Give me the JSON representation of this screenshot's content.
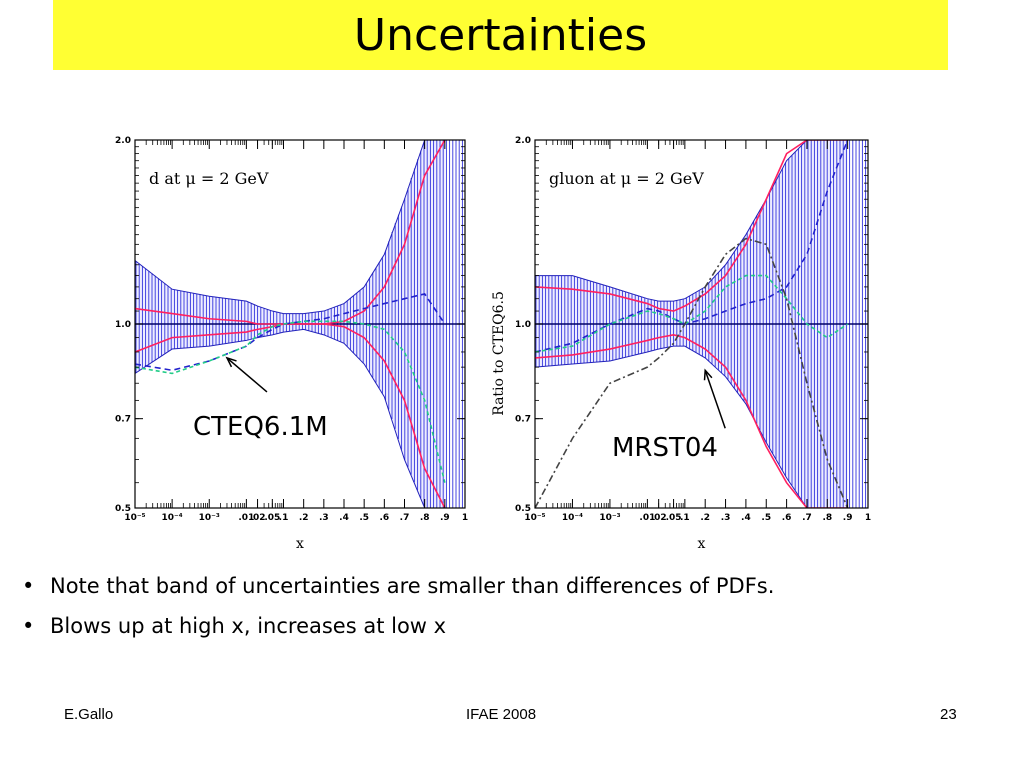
{
  "title": "Uncertainties",
  "chart_data": [
    {
      "type": "line",
      "label": "d at μ = 2 GeV",
      "xlabel": "x",
      "ylabel": "",
      "x_scale": "mixed-log",
      "ylim": [
        0.5,
        2.0
      ],
      "ytick_labels": [
        "2.0",
        "1.0",
        "0.7",
        "0.5"
      ],
      "xtick_labels": [
        "10⁻⁵",
        "10⁻⁴",
        "10⁻³",
        ".01",
        ".02",
        ".05",
        ".1",
        ".2",
        ".3",
        ".4",
        ".5",
        ".6",
        ".7",
        ".8",
        ".9",
        "1"
      ],
      "x": [
        1e-05,
        0.0001,
        0.001,
        0.01,
        0.02,
        0.05,
        0.1,
        0.2,
        0.3,
        0.4,
        0.5,
        0.6,
        0.7,
        0.8,
        0.9
      ],
      "band_upper": [
        1.27,
        1.14,
        1.11,
        1.09,
        1.07,
        1.05,
        1.04,
        1.04,
        1.05,
        1.08,
        1.15,
        1.3,
        1.6,
        2.0,
        2.0
      ],
      "band_lower": [
        0.83,
        0.91,
        0.92,
        0.94,
        0.95,
        0.96,
        0.97,
        0.98,
        0.96,
        0.93,
        0.86,
        0.76,
        0.6,
        0.5,
        0.5
      ],
      "series": [
        {
          "values": [
            1.06,
            1.04,
            1.02,
            1.01,
            1.0,
            1.0,
            1.0,
            1.0,
            1.0,
            1.01,
            1.05,
            1.15,
            1.35,
            1.75,
            2.0
          ],
          "color": "#ff2060"
        },
        {
          "values": [
            0.9,
            0.95,
            0.96,
            0.97,
            0.98,
            0.99,
            1.0,
            1.0,
            1.0,
            0.99,
            0.95,
            0.87,
            0.75,
            0.58,
            0.5
          ],
          "color": "#ff2060"
        },
        {
          "values": [
            0.86,
            0.84,
            0.87,
            0.92,
            0.95,
            0.98,
            1.0,
            1.01,
            1.02,
            1.04,
            1.06,
            1.08,
            1.1,
            1.12,
            1.0
          ],
          "color": "#2222cc",
          "dash": "6,4"
        },
        {
          "values": [
            0.85,
            0.83,
            0.87,
            0.92,
            0.96,
            0.99,
            1.0,
            1.01,
            1.01,
            1.01,
            1.0,
            0.98,
            0.9,
            0.75,
            0.55
          ],
          "color": "#22cc88",
          "dash": "4,3"
        }
      ],
      "callout": "CTEQ6.1M",
      "callout_target": {
        "x": 0.003,
        "y": 0.88
      }
    },
    {
      "type": "line",
      "label": "gluon at μ = 2 GeV",
      "xlabel": "x",
      "ylabel": "Ratio to CTEQ6.5",
      "x_scale": "mixed-log",
      "ylim": [
        0.5,
        2.0
      ],
      "ytick_labels": [
        "2.0",
        "1.0",
        "0.7",
        "0.5"
      ],
      "xtick_labels": [
        "10⁻⁵",
        "10⁻⁴",
        "10⁻³",
        ".01",
        ".02",
        ".05",
        ".1",
        ".2",
        ".3",
        ".4",
        ".5",
        ".6",
        ".7",
        ".8",
        ".9",
        "1"
      ],
      "x": [
        1e-05,
        0.0001,
        0.001,
        0.01,
        0.02,
        0.05,
        0.1,
        0.2,
        0.3,
        0.4,
        0.5,
        0.6,
        0.7,
        0.8,
        0.9
      ],
      "band_upper": [
        1.2,
        1.2,
        1.15,
        1.1,
        1.09,
        1.09,
        1.1,
        1.15,
        1.25,
        1.4,
        1.6,
        1.85,
        2.0,
        2.0,
        2.0
      ],
      "band_lower": [
        0.85,
        0.86,
        0.87,
        0.9,
        0.91,
        0.92,
        0.92,
        0.88,
        0.82,
        0.74,
        0.64,
        0.56,
        0.5,
        0.5,
        0.5
      ],
      "series": [
        {
          "values": [
            1.15,
            1.14,
            1.12,
            1.08,
            1.06,
            1.05,
            1.07,
            1.12,
            1.2,
            1.35,
            1.6,
            1.9,
            2.0,
            2.0,
            2.0
          ],
          "color": "#ff2060"
        },
        {
          "values": [
            0.88,
            0.89,
            0.91,
            0.94,
            0.95,
            0.96,
            0.95,
            0.91,
            0.85,
            0.75,
            0.63,
            0.55,
            0.5,
            0.5,
            0.5
          ],
          "color": "#ff2060"
        },
        {
          "values": [
            0.9,
            0.93,
            1.0,
            1.06,
            1.05,
            1.02,
            1.0,
            1.02,
            1.05,
            1.08,
            1.1,
            1.15,
            1.3,
            1.65,
            2.0
          ],
          "color": "#2222cc",
          "dash": "6,4"
        },
        {
          "values": [
            0.9,
            0.92,
            1.0,
            1.05,
            1.04,
            1.02,
            1.0,
            1.05,
            1.15,
            1.2,
            1.2,
            1.1,
            1.0,
            0.95,
            1.0
          ],
          "color": "#22cc88",
          "dash": "4,3"
        },
        {
          "values": [
            0.5,
            0.65,
            0.8,
            0.85,
            0.88,
            0.93,
            1.0,
            1.15,
            1.3,
            1.38,
            1.35,
            1.1,
            0.8,
            0.6,
            0.5
          ],
          "color": "#444444",
          "dash": "7,3,2,3"
        }
      ],
      "callout": "MRST04",
      "callout_target": {
        "x": 0.2,
        "y": 0.84
      }
    }
  ],
  "bullets": [
    "Note that band of uncertainties are smaller than differences of PDFs.",
    "Blows up at high x, increases at low x"
  ],
  "footer": {
    "left": "E.Gallo",
    "center": "IFAE 2008",
    "right": "23"
  }
}
